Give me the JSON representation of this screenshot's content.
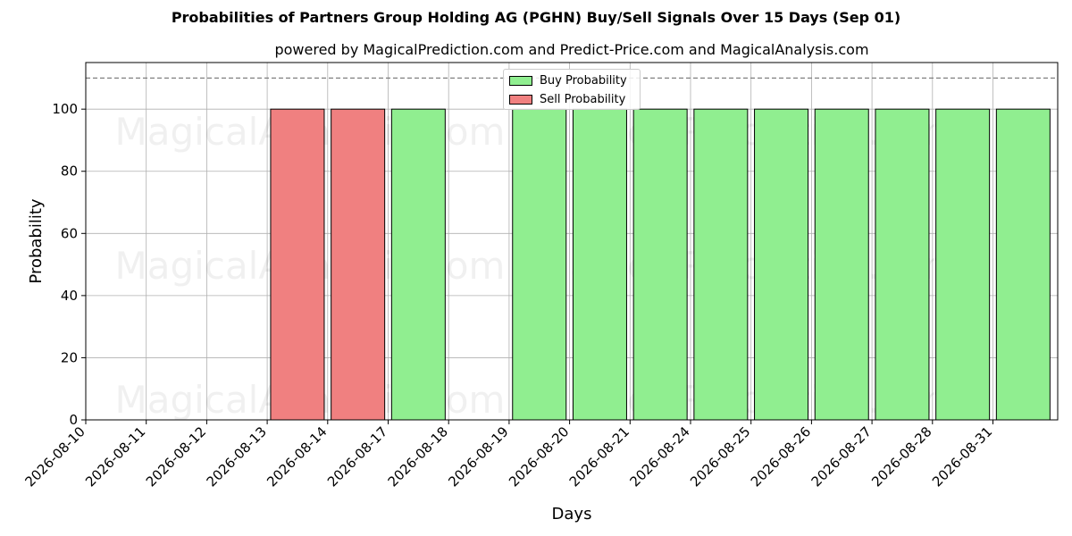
{
  "chart_data": {
    "type": "bar",
    "title": "Probabilities of Partners Group Holding AG (PGHN) Buy/Sell Signals Over 15 Days (Sep 01)",
    "subtitle": "powered by MagicalPrediction.com and Predict-Price.com and MagicalAnalysis.com",
    "xlabel": "Days",
    "ylabel": "Probability",
    "ylim": [
      0,
      115
    ],
    "yticks": [
      0,
      20,
      40,
      60,
      80,
      100
    ],
    "reference_line": 110,
    "grid": true,
    "legend_position": "top-center",
    "categories": [
      "2026-08-10",
      "2026-08-11",
      "2026-08-12",
      "2026-08-13",
      "2026-08-14",
      "2026-08-17",
      "2026-08-18",
      "2026-08-19",
      "2026-08-20",
      "2026-08-21",
      "2026-08-24",
      "2026-08-25",
      "2026-08-26",
      "2026-08-27",
      "2026-08-28",
      "2026-08-31"
    ],
    "series": [
      {
        "name": "Buy Probability",
        "color": "#90ee90",
        "values": [
          0,
          0,
          0,
          0,
          0,
          100,
          0,
          100,
          100,
          100,
          100,
          100,
          100,
          100,
          100,
          100
        ]
      },
      {
        "name": "Sell Probability",
        "color": "#f08080",
        "values": [
          0,
          0,
          0,
          100,
          100,
          0,
          0,
          0,
          0,
          0,
          0,
          0,
          0,
          0,
          0,
          0
        ]
      }
    ],
    "watermarks": [
      "MagicalAnalysis.com",
      "MagicalPrediction.com"
    ]
  }
}
